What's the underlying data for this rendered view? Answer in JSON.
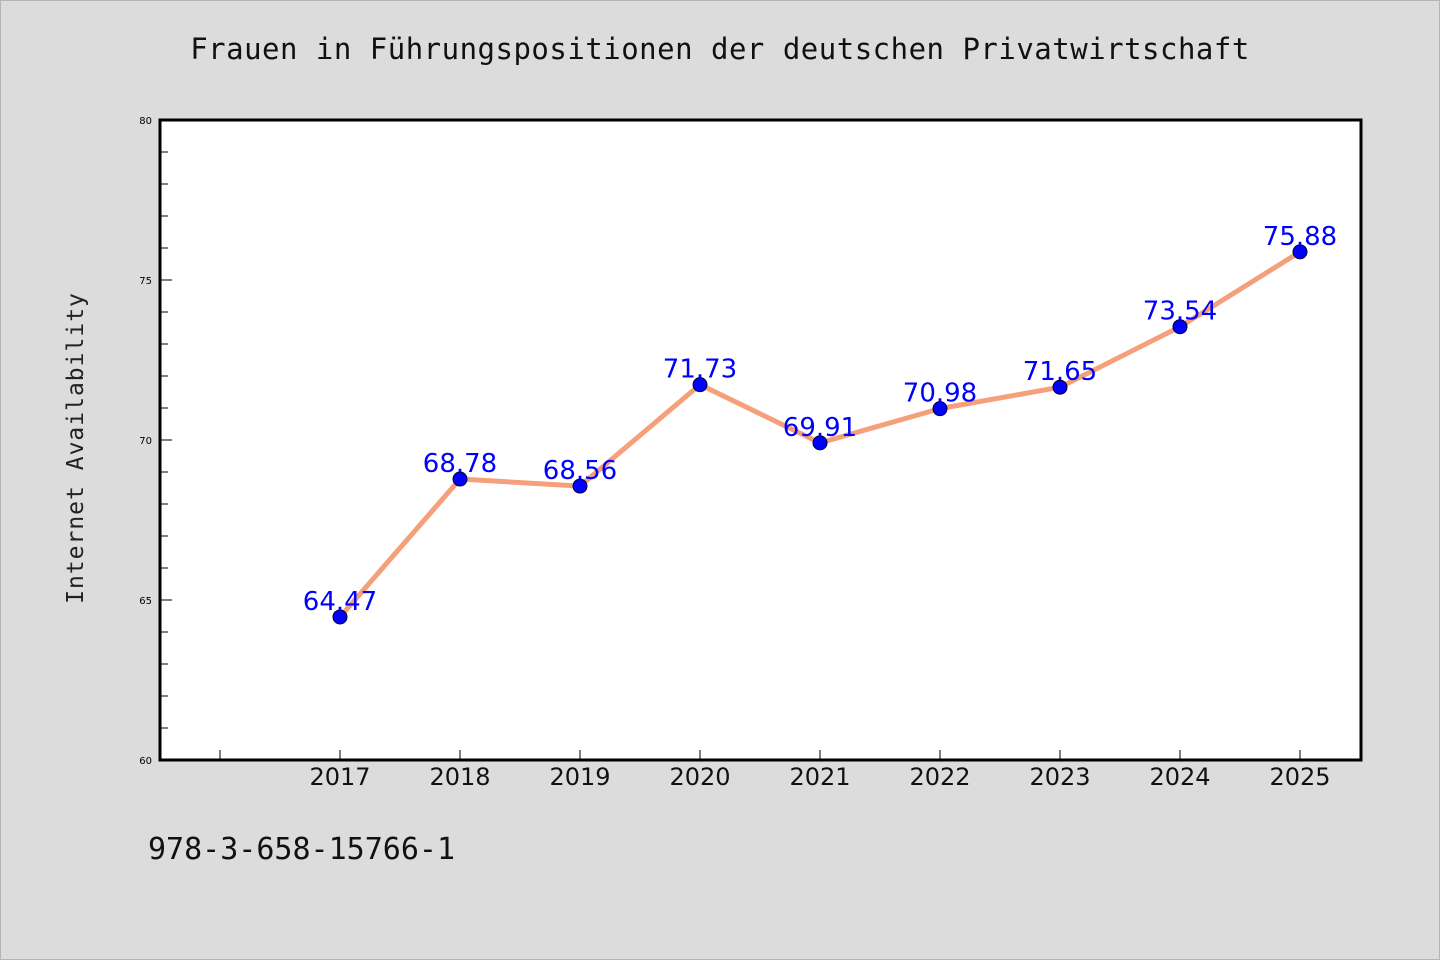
{
  "chart_data": {
    "type": "line",
    "title": "Frauen in Führungspositionen der deutschen Privatwirtschaft",
    "xlabel": "",
    "ylabel": "Internet Availability",
    "x": [
      "2017",
      "2018",
      "2019",
      "2020",
      "2021",
      "2022",
      "2023",
      "2024",
      "2025"
    ],
    "series": [
      {
        "values": [
          64.47,
          68.78,
          68.56,
          71.73,
          69.91,
          70.98,
          71.65,
          73.54,
          75.88
        ],
        "labels": [
          "64.47",
          "68.78",
          "68.56",
          "71.73",
          "69.91",
          "70.98",
          "71.65",
          "73.54",
          "75.88"
        ],
        "line_color": "#f4a07a",
        "marker_color": "#0000ff"
      }
    ],
    "ylim": [
      60,
      80
    ],
    "y_ticks": [
      "60",
      "65",
      "70",
      "75",
      "80"
    ],
    "grid": false,
    "legend": "none"
  },
  "footnote": "978-3-658-15766-1"
}
